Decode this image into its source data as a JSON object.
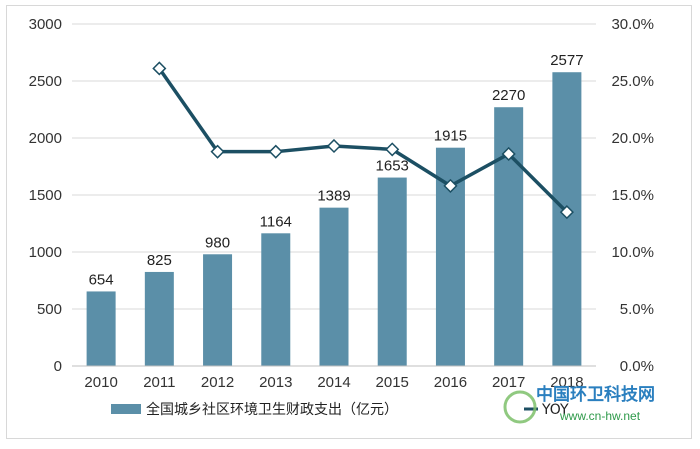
{
  "chart_data": {
    "type": "bar",
    "categories": [
      "2010",
      "2011",
      "2012",
      "2013",
      "2014",
      "2015",
      "2016",
      "2017",
      "2018"
    ],
    "series": [
      {
        "name": "全国城乡社区环境卫生财政支出（亿元）",
        "type": "bar",
        "axis": "left",
        "values": [
          654,
          825,
          980,
          1164,
          1389,
          1653,
          1915,
          2270,
          2577
        ],
        "labels": [
          "654",
          "825",
          "980",
          "1164",
          "1389",
          "1653",
          "1915",
          "2270",
          "2577"
        ],
        "color": "#5b8fa8"
      },
      {
        "name": "YOY",
        "type": "line",
        "axis": "right",
        "values": [
          null,
          26.1,
          18.8,
          18.8,
          19.3,
          19.0,
          15.8,
          18.6,
          13.5
        ],
        "color": "#1c4f63"
      }
    ],
    "y_left": {
      "min": 0,
      "max": 3000,
      "step": 500,
      "ticks": [
        "0",
        "500",
        "1000",
        "1500",
        "2000",
        "2500",
        "3000"
      ]
    },
    "y_right": {
      "min": 0,
      "max": 30,
      "step": 5,
      "ticks": [
        "0.0%",
        "5.0%",
        "10.0%",
        "15.0%",
        "20.0%",
        "25.0%",
        "30.0%"
      ]
    },
    "grid": true,
    "legend_position": "bottom-left"
  },
  "watermark": {
    "site_name": "中国环卫科技网",
    "url": "www.cn-hw.net"
  }
}
